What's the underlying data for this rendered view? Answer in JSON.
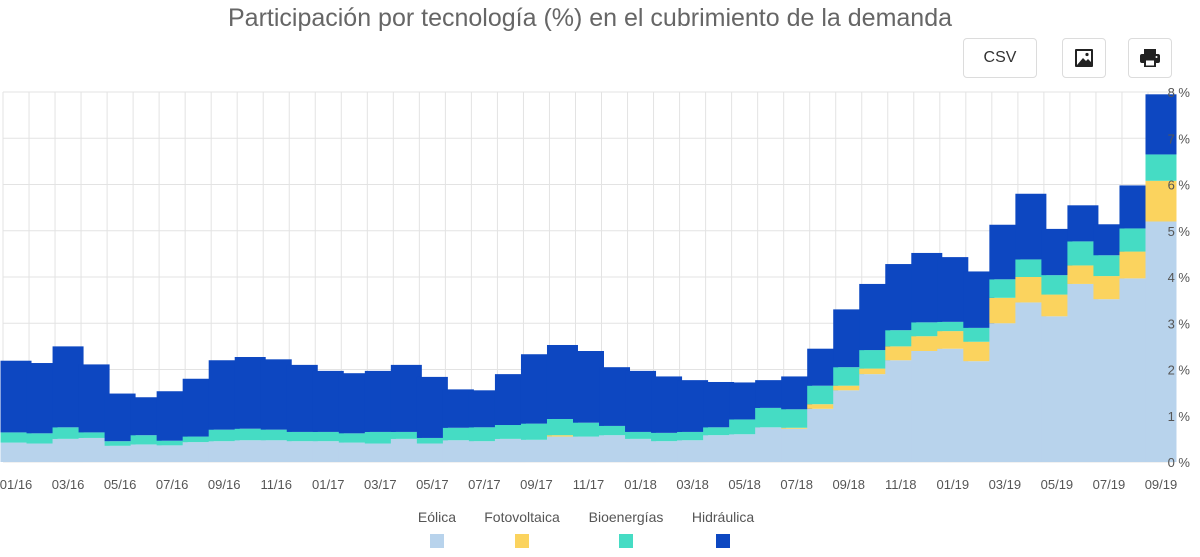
{
  "title": "Participación por tecnología (%) en el cubrimiento de la demanda",
  "toolbar": {
    "csv_label": "CSV",
    "image_icon": "image-icon",
    "print_icon": "print-icon"
  },
  "chart_data": {
    "type": "bar",
    "stacked": true,
    "title": "Participación por tecnología (%) en el cubrimiento de la demanda",
    "ylim": [
      0,
      8
    ],
    "yticks": [
      "0 %",
      "1 %",
      "2 %",
      "3 %",
      "4 %",
      "5 %",
      "6 %",
      "7 %",
      "8 %"
    ],
    "y_axis_position": "right",
    "grid": true,
    "legend_position": "bottom",
    "categories": [
      "01/16",
      "02/16",
      "03/16",
      "04/16",
      "05/16",
      "06/16",
      "07/16",
      "08/16",
      "09/16",
      "10/16",
      "11/16",
      "12/16",
      "01/17",
      "02/17",
      "03/17",
      "04/17",
      "05/17",
      "06/17",
      "07/17",
      "08/17",
      "09/17",
      "10/17",
      "11/17",
      "12/17",
      "01/18",
      "02/18",
      "03/18",
      "04/18",
      "05/18",
      "06/18",
      "07/18",
      "08/18",
      "09/18",
      "10/18",
      "11/18",
      "12/18",
      "01/19",
      "02/19",
      "03/19",
      "04/19",
      "05/19",
      "06/19",
      "07/19",
      "08/19",
      "09/19"
    ],
    "x_tick_labels": [
      "01/16",
      "03/16",
      "05/16",
      "07/16",
      "09/16",
      "11/16",
      "01/17",
      "03/17",
      "05/17",
      "07/17",
      "09/17",
      "11/17",
      "01/18",
      "03/18",
      "05/18",
      "07/18",
      "09/18",
      "11/18",
      "01/19",
      "03/19",
      "05/19",
      "07/19",
      "09/19"
    ],
    "series": [
      {
        "name": "Eólica",
        "color": "#b8d3ec",
        "values": [
          0.42,
          0.4,
          0.5,
          0.52,
          0.35,
          0.38,
          0.36,
          0.43,
          0.45,
          0.47,
          0.47,
          0.45,
          0.45,
          0.42,
          0.4,
          0.5,
          0.4,
          0.47,
          0.45,
          0.5,
          0.48,
          0.55,
          0.55,
          0.58,
          0.5,
          0.45,
          0.47,
          0.58,
          0.6,
          0.75,
          0.72,
          1.15,
          1.55,
          1.9,
          2.2,
          2.4,
          2.45,
          2.18,
          3.0,
          3.45,
          3.15,
          3.85,
          3.52,
          3.97,
          5.2
        ]
      },
      {
        "name": "Fotovoltaica",
        "color": "#fbd35e",
        "values": [
          0,
          0,
          0,
          0,
          0,
          0,
          0,
          0,
          0,
          0,
          0,
          0,
          0,
          0,
          0,
          0,
          0,
          0,
          0,
          0,
          0,
          0.03,
          0,
          0,
          0,
          0,
          0,
          0,
          0,
          0,
          0.02,
          0.1,
          0.1,
          0.12,
          0.3,
          0.32,
          0.38,
          0.42,
          0.55,
          0.55,
          0.47,
          0.4,
          0.5,
          0.58,
          0.88
        ]
      },
      {
        "name": "Bioenergías",
        "color": "#45dcc4",
        "values": [
          0.22,
          0.22,
          0.25,
          0.12,
          0.1,
          0.2,
          0.1,
          0.12,
          0.25,
          0.25,
          0.23,
          0.2,
          0.2,
          0.2,
          0.25,
          0.15,
          0.12,
          0.27,
          0.3,
          0.3,
          0.35,
          0.35,
          0.3,
          0.2,
          0.15,
          0.18,
          0.18,
          0.17,
          0.32,
          0.42,
          0.4,
          0.4,
          0.4,
          0.4,
          0.35,
          0.3,
          0.2,
          0.3,
          0.4,
          0.38,
          0.42,
          0.52,
          0.45,
          0.5,
          0.57
        ]
      },
      {
        "name": "Hidráulica",
        "color": "#0d47c1",
        "values": [
          1.55,
          1.52,
          1.75,
          1.47,
          1.03,
          0.82,
          1.07,
          1.25,
          1.5,
          1.55,
          1.52,
          1.45,
          1.32,
          1.3,
          1.32,
          1.45,
          1.32,
          0.83,
          0.8,
          1.1,
          1.5,
          1.6,
          1.55,
          1.27,
          1.32,
          1.22,
          1.12,
          0.98,
          0.8,
          0.6,
          0.71,
          0.8,
          1.25,
          1.43,
          1.43,
          1.5,
          1.4,
          1.22,
          1.18,
          1.42,
          1.0,
          0.78,
          0.67,
          0.93,
          1.3
        ]
      }
    ]
  }
}
